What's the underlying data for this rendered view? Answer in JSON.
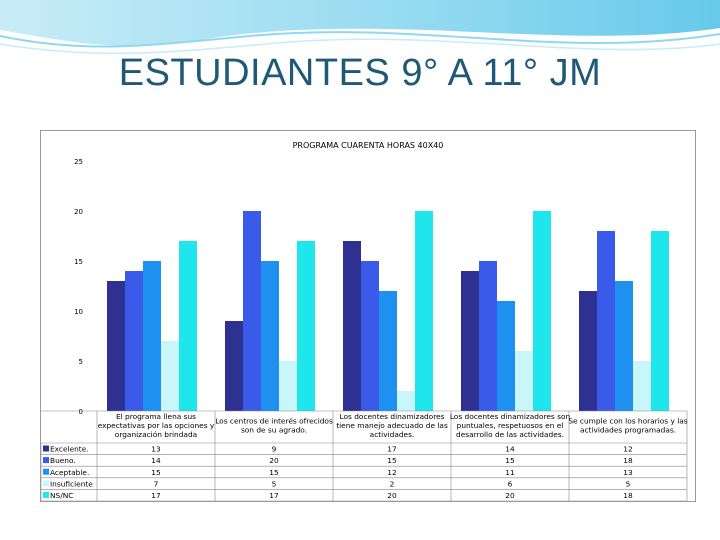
{
  "slide": {
    "title": "ESTUDIANTES 9° A  11° JM"
  },
  "chart_data": {
    "type": "bar",
    "title": "PROGRAMA CUARENTA HORAS 40X40",
    "ylim": [
      0,
      25
    ],
    "yticks": [
      0,
      5,
      10,
      15,
      20,
      25
    ],
    "categories": [
      [
        "El programa llena sus",
        "expectativas por las opciones y",
        "organización brindada"
      ],
      [
        "Los centros de interés ofrecidos",
        "son de su agrado."
      ],
      [
        "Los docentes dinamizadores",
        "tiene manejo adecuado de las",
        "actividades."
      ],
      [
        "Los docentes dinamizadores son",
        "puntuales, respetuosos en el",
        "desarrollo de las actividades."
      ],
      [
        "Se cumple con los horarios y las",
        "actividades programadas."
      ]
    ],
    "series": [
      {
        "name": "Excelente.",
        "color": "#2e3192",
        "values": [
          13,
          9,
          17,
          14,
          12
        ]
      },
      {
        "name": "Bueno.",
        "color": "#3a5bea",
        "values": [
          14,
          20,
          15,
          15,
          18
        ]
      },
      {
        "name": "Aceptable.",
        "color": "#1e90f0",
        "values": [
          15,
          15,
          12,
          11,
          13
        ]
      },
      {
        "name": "Insuficiente",
        "color": "#c8f6fb",
        "values": [
          7,
          5,
          2,
          6,
          5
        ]
      },
      {
        "name": "NS/NC",
        "color": "#1ee6ec",
        "values": [
          17,
          17,
          20,
          20,
          18
        ]
      }
    ],
    "legend": "table-left",
    "grid": false
  }
}
